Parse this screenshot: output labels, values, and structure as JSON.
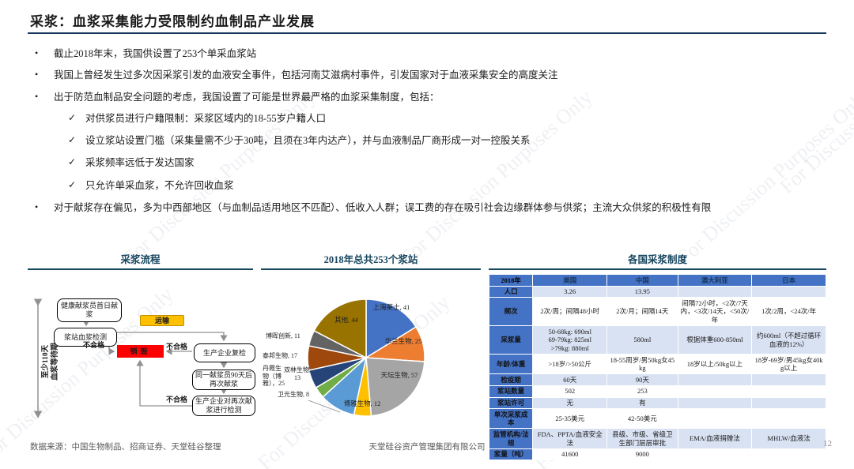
{
  "slide": {
    "title": "采浆：血浆采集能力受限制约血制品产业发展",
    "watermark": "For Discussion Purposes Only",
    "footer": {
      "source": "数据来源：中国生物制品、招商证券、天堂硅谷整理",
      "company": "天堂硅谷资产管理集团有限公司",
      "page_number": "12"
    }
  },
  "bullets": {
    "b1": "截止2018年末，我国供设置了253个单采血浆站",
    "b2": "我国上曾经发生过多次因采浆引发的血液安全事件，包括河南艾滋病村事件，引发国家对于血液采集安全的高度关注",
    "b3": "出于防范血制品安全问题的考虑，我国设置了可能是世界最严格的血浆采集制度，包括：",
    "c1": "对供浆员进行户籍限制：采浆区域内的18-55岁户籍人口",
    "c2": "设立浆站设置门槛（采集量需不少于30吨，且须在3年内达产），并与血液制品厂商形成一对一控股关系",
    "c3": "采浆频率远低于发达国家",
    "c4": "只允许单采血浆，不允许回收血浆",
    "b4": "对于献浆存在偏见，多为中西部地区（与血制品适用地区不匹配）、低收入人群；误工费的存在吸引社会边缘群体参与供浆；主流大众供浆的积极性有限",
    "dot": "•",
    "check": "✓"
  },
  "flowchart": {
    "section_title": "采浆流程",
    "side_label": "至少110天\n血浆等待期",
    "box_first_donation": "健康献浆员首日献浆",
    "box_station_test": "浆站血浆检测",
    "box_transport": "运输",
    "box_destroy": "销毁",
    "box_recheck": "生产企业复检",
    "box_second_donation": "同一献浆员90天后再次献浆",
    "box_second_test": "生产企业对再次献浆进行检测",
    "fail_label": "不合格"
  },
  "chart_data": {
    "type": "pie",
    "title": "2018年总共253个浆站",
    "total": 253,
    "legend_position": "data-labels",
    "series": [
      {
        "name": "上海莱士",
        "value": 41,
        "color": "#4472C4"
      },
      {
        "name": "华兰生物",
        "value": 25,
        "color": "#ED7D31"
      },
      {
        "name": "天坛生物",
        "value": 57,
        "color": "#A5A5A5"
      },
      {
        "name": "博雅生物",
        "value": 12,
        "color": "#FFC000"
      },
      {
        "name": "丹霞生物（博雅）",
        "value": 25,
        "color": "#5B9BD5"
      },
      {
        "name": "卫光生物",
        "value": 8,
        "color": "#70AD47"
      },
      {
        "name": "双林生物",
        "value": 13,
        "color": "#264478"
      },
      {
        "name": "泰邦生物",
        "value": 17,
        "color": "#9E480E"
      },
      {
        "name": "博晖创新",
        "value": 11,
        "color": "#636363"
      },
      {
        "name": "其他",
        "value": 44,
        "color": "#997300"
      }
    ],
    "labels": [
      "上海莱士, 41",
      "华兰生物, 25",
      "天坛生物, 57",
      "博雅生物, 12",
      "丹霞生物（博雅），25",
      "卫光生物, 8",
      "双林生物, 13",
      "泰邦生物, 17",
      "博晖创新, 11",
      "其他, 44"
    ]
  },
  "table": {
    "section_title": "各国采浆制度",
    "corner": "2018年",
    "columns": [
      "美国",
      "中国",
      "澳大利亚",
      "日本"
    ],
    "rows": [
      {
        "label": "人口",
        "values": [
          "3.26",
          "13.95",
          "",
          ""
        ]
      },
      {
        "label": "频次",
        "values": [
          "2次/周；间隔48小时",
          "2次/月；间隔14天",
          "间隔72小时，<2次/7天内，<3次/14天，<50次/年",
          "1次/2周，<24次/年"
        ]
      },
      {
        "label": "采浆量",
        "values": [
          "50-68kg: 690ml\n69-79kg: 825ml\n>79kg: 880ml",
          "580ml",
          "根据体重600-850ml",
          "约600ml（不超过循环血液的12%）"
        ]
      },
      {
        "label": "年龄/体重",
        "values": [
          ">18岁/>50公斤",
          "18-55周岁/男50kg女45kg",
          "18岁以上/50kg以上",
          "18岁-69岁/男45kg女40kg以上"
        ]
      },
      {
        "label": "检疫期",
        "values": [
          "60天",
          "90天",
          "",
          ""
        ]
      },
      {
        "label": "浆站数量",
        "values": [
          "502",
          "253",
          "",
          ""
        ]
      },
      {
        "label": "浆站许可",
        "values": [
          "无",
          "有",
          "",
          ""
        ]
      },
      {
        "label": "单次采浆成本",
        "values": [
          "25-35美元",
          "42-50美元",
          "",
          ""
        ]
      },
      {
        "label": "监管机构/法规",
        "values": [
          "FDA、PPTA/血液安全法",
          "县级、市级、省级卫生部门层层审批",
          "EMA/血液捐赠法",
          "MHLW/血液法"
        ]
      },
      {
        "label": "浆量（吨）",
        "values": [
          "41600",
          "9000",
          "",
          ""
        ]
      }
    ]
  },
  "colors": {
    "accent_dark": "#17375E",
    "section_title": "#17465F",
    "table_header_bg": "#4472C4",
    "table_band": "#D9E2F3",
    "destroy_red": "#FF0000",
    "transport_orange": "#FFC000",
    "arrow_gray": "#909090"
  }
}
